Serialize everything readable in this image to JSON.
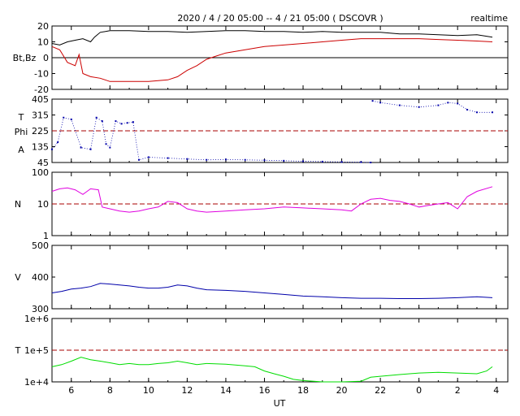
{
  "header": {
    "title": "2020 / 4 / 20   05:00 --  4 / 21   05:00  ( DSCOVR )",
    "realtime_label": "realtime"
  },
  "colors": {
    "bt": "#000000",
    "bz": "#cc0000",
    "theta_phi": "#0000aa",
    "density": "#e000e0",
    "velocity": "#0000aa",
    "temperature": "#00dd00",
    "reference_line": "#aa0000"
  },
  "chart_data": [
    {
      "type": "line",
      "panel": "magnetic-field",
      "ylabel": "Bt,Bz",
      "ylim": [
        -20,
        20
      ],
      "yticks": [
        "20",
        "10",
        "0",
        "-10",
        "-20"
      ],
      "zero_line": 0,
      "series": [
        {
          "key": "bt",
          "x": [
            5.0,
            5.4,
            5.8,
            6.2,
            6.6,
            7.0,
            7.2,
            7.5,
            8.0,
            9,
            10,
            11,
            12,
            13,
            14,
            15,
            16,
            17,
            18,
            19,
            20,
            21,
            22,
            23,
            24,
            25,
            26,
            27,
            27.8
          ],
          "values": [
            9,
            8,
            10,
            11,
            12,
            10,
            13,
            16,
            17,
            17,
            16.5,
            16.5,
            16,
            16.5,
            17,
            17,
            16.5,
            16.5,
            16,
            16.5,
            16,
            16,
            16,
            15,
            15,
            14.5,
            14,
            14.5,
            13
          ]
        },
        {
          "key": "bz",
          "x": [
            5.0,
            5.4,
            5.8,
            6.2,
            6.4,
            6.6,
            7.0,
            7.5,
            8.0,
            9,
            10,
            11,
            11.5,
            12,
            12.5,
            13,
            13.5,
            14,
            15,
            16,
            17,
            18,
            19,
            20,
            21,
            22,
            23,
            24,
            25,
            26,
            27,
            27.8
          ],
          "values": [
            7,
            5,
            -3,
            -5,
            2,
            -10,
            -12,
            -13,
            -15,
            -15,
            -15,
            -14,
            -12,
            -8,
            -5,
            -1,
            1,
            3,
            5,
            7,
            8,
            9,
            10,
            11,
            12,
            12,
            12,
            12,
            11.5,
            11,
            10.5,
            10
          ]
        }
      ]
    },
    {
      "type": "scatter",
      "panel": "theta-phi",
      "ylabel_lines": [
        "T",
        "Phi",
        "A"
      ],
      "ylim": [
        45,
        405
      ],
      "yticks": [
        "405",
        "315",
        "225",
        "135",
        "45"
      ],
      "reference_line": 225,
      "series": [
        {
          "key": "phi",
          "x": [
            5.0,
            5.3,
            5.6,
            6.0,
            6.5,
            7.0,
            7.3,
            7.6,
            7.8,
            8.0,
            8.3,
            8.6,
            8.9,
            9.2,
            9.5,
            10,
            11,
            12,
            13,
            14,
            15,
            16,
            17,
            18,
            19,
            20,
            21,
            21.5
          ],
          "values": [
            120,
            160,
            300,
            290,
            130,
            120,
            300,
            280,
            150,
            130,
            280,
            265,
            270,
            275,
            60,
            75,
            70,
            65,
            60,
            62,
            60,
            58,
            55,
            52,
            50,
            48,
            47,
            45
          ]
        },
        {
          "key": "phi-high",
          "x": [
            21.6,
            22,
            23,
            24,
            25,
            25.5,
            26,
            26.5,
            27,
            27.8
          ],
          "values": [
            395,
            385,
            370,
            360,
            370,
            385,
            380,
            345,
            330,
            330
          ]
        }
      ]
    },
    {
      "type": "line",
      "panel": "density",
      "ylabel": "N",
      "scale": "log",
      "ylim": [
        1,
        100
      ],
      "yticks": [
        "100",
        "10",
        "1"
      ],
      "reference_line": 10,
      "series": [
        {
          "key": "density",
          "x": [
            5.0,
            5.4,
            5.8,
            6.2,
            6.6,
            7.0,
            7.4,
            7.6,
            8.0,
            8.5,
            9,
            9.5,
            10,
            10.5,
            11,
            11.5,
            12,
            12.5,
            13,
            14,
            15,
            16,
            17,
            18,
            19,
            20,
            20.5,
            21,
            21.5,
            22,
            22.5,
            23,
            23.5,
            24,
            24.5,
            25,
            25.5,
            26,
            26.5,
            27,
            27.8
          ],
          "values": [
            25,
            30,
            32,
            28,
            20,
            30,
            28,
            8,
            7,
            6,
            5.5,
            6,
            7,
            8,
            12,
            11,
            7,
            6,
            5.5,
            6,
            6.5,
            7,
            8,
            7.5,
            7,
            6.5,
            6,
            10,
            14,
            15,
            13,
            12,
            10,
            8,
            9,
            10,
            11,
            7,
            17,
            25,
            35
          ]
        }
      ]
    },
    {
      "type": "line",
      "panel": "velocity",
      "ylabel": "V",
      "ylim": [
        300,
        500
      ],
      "yticks": [
        "500",
        "400",
        "300"
      ],
      "series": [
        {
          "key": "velocity",
          "x": [
            5.0,
            5.5,
            6,
            6.5,
            7,
            7.5,
            8,
            8.5,
            9,
            9.5,
            10,
            10.5,
            11,
            11.5,
            12,
            12.5,
            13,
            14,
            15,
            16,
            17,
            18,
            19,
            20,
            21,
            22,
            23,
            24,
            25,
            26,
            27,
            27.8
          ],
          "values": [
            350,
            355,
            362,
            365,
            370,
            380,
            378,
            375,
            372,
            368,
            365,
            365,
            368,
            375,
            372,
            365,
            360,
            358,
            355,
            350,
            345,
            340,
            338,
            335,
            333,
            333,
            332,
            332,
            333,
            335,
            338,
            335
          ]
        }
      ]
    },
    {
      "type": "line",
      "panel": "temperature",
      "ylabel": "T",
      "scale": "log",
      "ylim": [
        10000,
        1000000
      ],
      "yticks": [
        "1e+6",
        "1e+5",
        "1e+4"
      ],
      "reference_line": 100000,
      "xlabel": "UT",
      "xticks": [
        "6",
        "8",
        "10",
        "12",
        "14",
        "16",
        "18",
        "20",
        "22",
        "0",
        "2",
        "4"
      ],
      "series": [
        {
          "key": "temperature",
          "x": [
            5.0,
            5.5,
            6,
            6.5,
            7,
            7.5,
            8,
            8.5,
            9,
            9.5,
            10,
            10.5,
            11,
            11.5,
            12,
            12.5,
            13,
            14,
            15,
            15.5,
            16,
            16.5,
            17,
            17.5,
            18,
            19,
            20,
            21,
            21.5,
            22,
            23,
            24,
            25,
            26,
            27,
            27.5,
            27.8
          ],
          "values": [
            30000,
            35000,
            45000,
            60000,
            50000,
            45000,
            40000,
            35000,
            38000,
            35000,
            35000,
            38000,
            40000,
            45000,
            40000,
            35000,
            38000,
            36000,
            32000,
            30000,
            22000,
            18000,
            15000,
            12000,
            11000,
            10000,
            10000,
            10500,
            14000,
            15000,
            17000,
            19000,
            20000,
            19000,
            18000,
            22000,
            30000
          ]
        }
      ]
    }
  ]
}
